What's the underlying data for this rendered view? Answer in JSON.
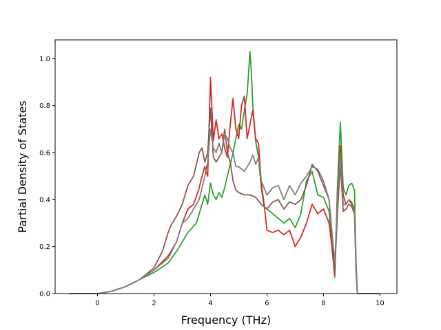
{
  "chart_data": {
    "type": "line",
    "title": "",
    "xlabel": "Frequency (THz)",
    "ylabel": "Partial Density of States",
    "xlim": [
      -1.5,
      10.6
    ],
    "ylim": [
      0.0,
      1.08
    ],
    "xticks": [
      0,
      2,
      4,
      6,
      8,
      10
    ],
    "yticks": [
      0.0,
      0.2,
      0.4,
      0.6,
      0.8,
      1.0
    ],
    "xtick_labels": [
      "0",
      "2",
      "4",
      "6",
      "8",
      "10"
    ],
    "ytick_labels": [
      "0.0",
      "0.2",
      "0.4",
      "0.6",
      "0.8",
      "1.0"
    ],
    "grid": false,
    "legend": null,
    "series": [
      {
        "color": "#2ca02c",
        "x": [
          -1.0,
          0.0,
          0.5,
          1.0,
          1.5,
          2.0,
          2.5,
          2.8,
          3.0,
          3.2,
          3.5,
          3.8,
          3.9,
          4.0,
          4.1,
          4.2,
          4.3,
          4.4,
          4.5,
          4.6,
          4.7,
          4.8,
          4.9,
          5.0,
          5.1,
          5.2,
          5.3,
          5.4,
          5.45,
          5.5,
          5.6,
          5.7,
          5.8,
          5.9,
          6.0,
          6.2,
          6.4,
          6.6,
          6.8,
          7.0,
          7.2,
          7.4,
          7.6,
          7.8,
          8.0,
          8.2,
          8.3,
          8.4,
          8.5,
          8.6,
          8.7,
          8.8,
          8.9,
          9.0,
          9.1,
          9.15,
          9.2,
          10.0
        ],
        "y": [
          0.0,
          0.0,
          0.01,
          0.03,
          0.06,
          0.09,
          0.13,
          0.18,
          0.22,
          0.26,
          0.3,
          0.42,
          0.38,
          0.47,
          0.42,
          0.4,
          0.43,
          0.41,
          0.45,
          0.5,
          0.55,
          0.6,
          0.66,
          0.72,
          0.7,
          0.78,
          0.85,
          1.03,
          0.94,
          0.8,
          0.65,
          0.58,
          0.45,
          0.37,
          0.36,
          0.34,
          0.32,
          0.3,
          0.32,
          0.28,
          0.34,
          0.48,
          0.52,
          0.42,
          0.41,
          0.35,
          0.2,
          0.07,
          0.47,
          0.73,
          0.45,
          0.42,
          0.46,
          0.47,
          0.44,
          0.15,
          0.0,
          0.0
        ]
      },
      {
        "color": "#d62728",
        "x": [
          -1.0,
          0.0,
          0.5,
          1.0,
          1.5,
          2.0,
          2.5,
          2.8,
          3.0,
          3.2,
          3.4,
          3.6,
          3.7,
          3.8,
          3.9,
          4.0,
          4.1,
          4.2,
          4.3,
          4.4,
          4.5,
          4.6,
          4.7,
          4.8,
          4.9,
          5.0,
          5.1,
          5.2,
          5.3,
          5.4,
          5.5,
          5.6,
          5.7,
          5.8,
          5.9,
          6.0,
          6.2,
          6.4,
          6.6,
          6.8,
          7.0,
          7.2,
          7.4,
          7.6,
          7.8,
          8.0,
          8.2,
          8.3,
          8.4,
          8.5,
          8.6,
          8.7,
          8.8,
          8.9,
          9.0,
          9.1,
          9.15,
          9.2,
          10.0
        ],
        "y": [
          0.0,
          0.0,
          0.01,
          0.03,
          0.06,
          0.1,
          0.16,
          0.22,
          0.3,
          0.36,
          0.38,
          0.45,
          0.5,
          0.54,
          0.5,
          0.92,
          0.65,
          0.74,
          0.66,
          0.68,
          0.62,
          0.58,
          0.72,
          0.83,
          0.7,
          0.66,
          0.8,
          0.84,
          0.66,
          0.72,
          0.78,
          0.66,
          0.64,
          0.47,
          0.38,
          0.27,
          0.26,
          0.27,
          0.25,
          0.27,
          0.2,
          0.24,
          0.3,
          0.38,
          0.34,
          0.36,
          0.3,
          0.2,
          0.08,
          0.42,
          0.63,
          0.42,
          0.38,
          0.4,
          0.38,
          0.35,
          0.12,
          0.0,
          0.0
        ]
      },
      {
        "color": "#8c564b",
        "x": [
          -1.0,
          0.0,
          0.5,
          1.0,
          1.5,
          2.0,
          2.3,
          2.5,
          2.6,
          2.8,
          3.0,
          3.2,
          3.4,
          3.6,
          3.7,
          3.8,
          3.9,
          4.0,
          4.1,
          4.2,
          4.3,
          4.4,
          4.5,
          4.6,
          4.7,
          4.8,
          4.9,
          5.0,
          5.2,
          5.4,
          5.6,
          5.8,
          6.0,
          6.2,
          6.4,
          6.6,
          6.8,
          7.0,
          7.2,
          7.4,
          7.6,
          7.8,
          8.0,
          8.2,
          8.4,
          8.5,
          8.6,
          8.7,
          8.8,
          8.9,
          9.0,
          9.1,
          9.15,
          9.2,
          10.0
        ],
        "y": [
          0.0,
          0.0,
          0.01,
          0.03,
          0.06,
          0.11,
          0.18,
          0.26,
          0.29,
          0.33,
          0.38,
          0.46,
          0.5,
          0.6,
          0.62,
          0.56,
          0.6,
          0.79,
          0.58,
          0.56,
          0.58,
          0.6,
          0.7,
          0.6,
          0.56,
          0.48,
          0.44,
          0.43,
          0.42,
          0.42,
          0.41,
          0.38,
          0.36,
          0.39,
          0.4,
          0.36,
          0.39,
          0.38,
          0.4,
          0.46,
          0.55,
          0.52,
          0.46,
          0.4,
          0.1,
          0.35,
          0.55,
          0.35,
          0.36,
          0.38,
          0.37,
          0.34,
          0.1,
          0.0,
          0.0
        ]
      },
      {
        "color": "#7f7f7f",
        "x": [
          -1.0,
          0.0,
          0.5,
          1.0,
          1.5,
          2.0,
          2.5,
          2.8,
          3.0,
          3.2,
          3.4,
          3.6,
          3.8,
          3.9,
          4.0,
          4.1,
          4.2,
          4.3,
          4.4,
          4.5,
          4.6,
          4.7,
          4.8,
          4.9,
          5.0,
          5.2,
          5.4,
          5.5,
          5.6,
          5.7,
          5.8,
          6.0,
          6.2,
          6.4,
          6.6,
          6.8,
          7.0,
          7.2,
          7.4,
          7.6,
          7.8,
          8.0,
          8.2,
          8.4,
          8.5,
          8.6,
          8.7,
          8.8,
          8.9,
          9.0,
          9.1,
          9.15,
          9.2,
          10.0
        ],
        "y": [
          0.0,
          0.0,
          0.01,
          0.03,
          0.06,
          0.1,
          0.15,
          0.22,
          0.3,
          0.32,
          0.36,
          0.4,
          0.5,
          0.56,
          0.7,
          0.62,
          0.6,
          0.64,
          0.6,
          0.68,
          0.66,
          0.62,
          0.6,
          0.54,
          0.54,
          0.52,
          0.56,
          0.59,
          0.55,
          0.58,
          0.48,
          0.42,
          0.45,
          0.46,
          0.4,
          0.46,
          0.42,
          0.47,
          0.5,
          0.54,
          0.53,
          0.48,
          0.4,
          0.13,
          0.4,
          0.6,
          0.38,
          0.38,
          0.4,
          0.39,
          0.36,
          0.12,
          0.0,
          0.0
        ]
      }
    ]
  }
}
